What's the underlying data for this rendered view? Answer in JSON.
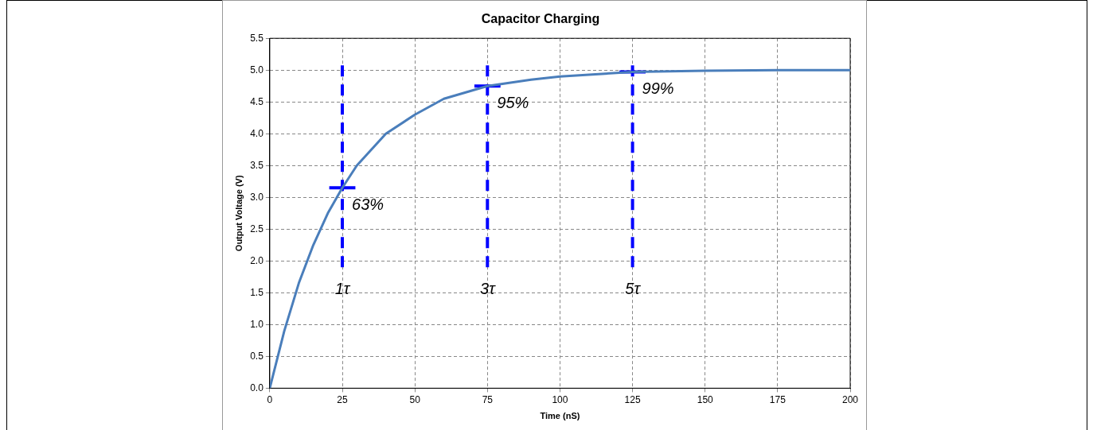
{
  "chart_data": {
    "type": "line",
    "title": "Capacitor Charging",
    "xlabel": "Time (nS)",
    "ylabel": "Output Voltage (V)",
    "xlim": [
      0,
      200
    ],
    "xticks": [
      0,
      25,
      50,
      75,
      100,
      125,
      150,
      175,
      200
    ],
    "ylim": [
      0,
      5.5
    ],
    "yticks": [
      {
        "value": 0,
        "label": "0.0"
      },
      {
        "value": 0.5,
        "label": "0.5"
      },
      {
        "value": 1,
        "label": "1.0"
      },
      {
        "value": 1.5,
        "label": "1.5"
      },
      {
        "value": 2,
        "label": "2.0"
      },
      {
        "value": 2.5,
        "label": "2.5"
      },
      {
        "value": 3,
        "label": "3.0"
      },
      {
        "value": 3.5,
        "label": "3.5"
      },
      {
        "value": 4,
        "label": "4.0"
      },
      {
        "value": 4.5,
        "label": "4.5"
      },
      {
        "value": 5,
        "label": "5.0"
      },
      {
        "value": 5.5,
        "label": "5.5"
      }
    ],
    "grid": true,
    "legend": false,
    "series": [
      {
        "color": "#4a7ebb",
        "line_style": "solid",
        "marker": "none",
        "x": [
          0,
          5,
          10,
          15,
          20,
          25,
          30,
          40,
          50,
          60,
          75,
          90,
          100,
          125,
          150,
          175,
          200
        ],
        "values": [
          0,
          0.9,
          1.65,
          2.25,
          2.75,
          3.15,
          3.5,
          4.0,
          4.3,
          4.55,
          4.75,
          4.85,
          4.9,
          4.97,
          4.99,
          5.0,
          5.0
        ]
      },
      {
        "type": "line",
        "color": "#0000ff",
        "line_style": "dashed",
        "marker": "none",
        "x": [
          25,
          25
        ],
        "values": [
          1.9,
          5.1
        ]
      },
      {
        "type": "line",
        "color": "#0000ff",
        "line_style": "dashed",
        "marker": "none",
        "x": [
          75,
          75
        ],
        "values": [
          1.9,
          5.1
        ]
      },
      {
        "type": "line",
        "color": "#0000ff",
        "line_style": "dashed",
        "marker": "none",
        "x": [
          125,
          125
        ],
        "values": [
          1.9,
          5.1
        ]
      },
      {
        "type": "line",
        "color": "#0000ff",
        "line_style": "solid",
        "marker": "none",
        "x": [
          20.5,
          29.5
        ],
        "values": [
          3.15,
          3.15
        ]
      },
      {
        "type": "line",
        "color": "#0000ff",
        "line_style": "solid",
        "marker": "none",
        "x": [
          70.5,
          79.5
        ],
        "values": [
          4.75,
          4.75
        ]
      },
      {
        "type": "line",
        "color": "#0000ff",
        "line_style": "solid",
        "marker": "none",
        "x": [
          120.5,
          129.5
        ],
        "values": [
          4.97,
          4.97
        ]
      }
    ],
    "annotations": [
      {
        "text": "63%",
        "x": 25,
        "y": 3.15
      },
      {
        "text": "95%",
        "x": 75,
        "y": 4.75
      },
      {
        "text": "99%",
        "x": 125,
        "y": 4.97
      },
      {
        "text": "1τ",
        "x": 25,
        "y": 1.9
      },
      {
        "text": "3τ",
        "x": 75,
        "y": 1.9
      },
      {
        "text": "5τ",
        "x": 125,
        "y": 1.9
      }
    ]
  }
}
